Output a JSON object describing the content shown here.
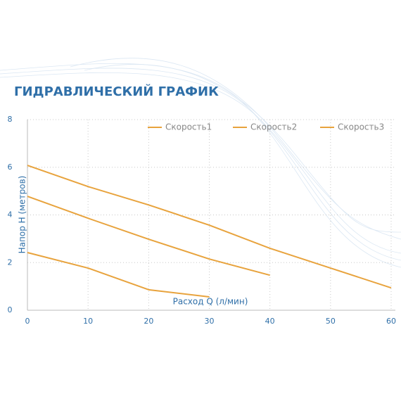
{
  "chart_data": {
    "type": "line",
    "title": "ГИДРАВЛИЧЕСКИЙ ГРАФИК",
    "x_label": "Расход Q (л/мин)",
    "y_label": "Напор H (метров)",
    "x": [
      0,
      10,
      20,
      30,
      40,
      50,
      60
    ],
    "series": [
      {
        "name": "Скорость1",
        "color": "#e8a33d",
        "values": [
          2.42,
          1.77,
          0.86,
          0.56,
          null,
          null,
          null
        ]
      },
      {
        "name": "Скорость2",
        "color": "#e8a33d",
        "values": [
          4.78,
          3.86,
          2.98,
          2.15,
          1.47,
          null,
          null
        ]
      },
      {
        "name": "Скорость3",
        "color": "#e8a33d",
        "values": [
          6.08,
          5.19,
          4.42,
          3.57,
          2.6,
          1.77,
          0.94
        ]
      }
    ],
    "xlim": [
      0,
      60
    ],
    "xticks": [
      0,
      10,
      20,
      30,
      40,
      50,
      60
    ],
    "ylim": [
      0,
      8
    ],
    "yticks": [
      0,
      2,
      4,
      6,
      8
    ],
    "grid": true
  }
}
